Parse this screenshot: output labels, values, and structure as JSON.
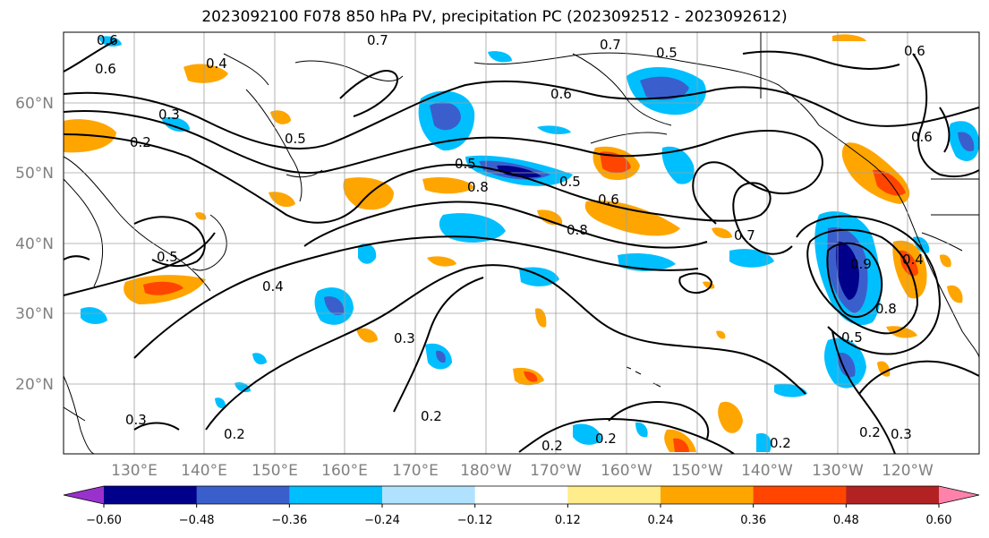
{
  "title": "2023092100 F078 850 hPa PV, precipitation PC (2023092512 - 2023092612)",
  "lat_labels": [
    "60°N",
    "50°N",
    "40°N",
    "30°N",
    "20°N"
  ],
  "lon_labels": [
    "130°E",
    "140°E",
    "150°E",
    "160°E",
    "170°E",
    "180°W",
    "170°W",
    "160°W",
    "150°W",
    "140°W",
    "130°W",
    "120°W"
  ],
  "colorbar": {
    "colors": [
      "#9932cc",
      "#00008b",
      "#3a5fcd",
      "#00bfff",
      "#b0e2ff",
      "#ffffff",
      "#ffec8b",
      "#ffa500",
      "#ff4500",
      "#b22222",
      "#ff82ab"
    ],
    "tick_labels": [
      "−0.60",
      "−0.48",
      "−0.36",
      "−0.24",
      "−0.12",
      "0.12",
      "0.24",
      "0.36",
      "0.48",
      "0.60"
    ]
  },
  "contour_labels": [
    "0.6",
    "0.6",
    "0.4",
    "0.7",
    "0.7",
    "0.5",
    "0.6",
    "0.6",
    "0.3",
    "0.2",
    "0.5",
    "0.5",
    "0.8",
    "0.5",
    "0.6",
    "0.8",
    "0.7",
    "0.9",
    "0.8",
    "0.4",
    "0.5",
    "0.4",
    "0.3",
    "0.2",
    "0.3",
    "0.2",
    "0.2",
    "0.2",
    "0.5",
    "0.2",
    "0.3",
    "0.6",
    "0.2"
  ]
}
